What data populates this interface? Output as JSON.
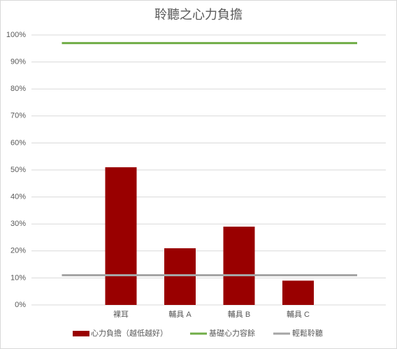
{
  "chart_data": {
    "type": "bar",
    "title": "聆聽之心力負擔",
    "categories": [
      "裸耳",
      "輔具 A",
      "輔具 B",
      "輔具 C"
    ],
    "series": [
      {
        "name": "心力負擔（越低越好）",
        "color": "#990000",
        "values": [
          51,
          21,
          29,
          9
        ]
      }
    ],
    "reference_lines": [
      {
        "name": "基礎心力容餘",
        "color": "#70ad47",
        "value": 97
      },
      {
        "name": "輕鬆聆聽",
        "color": "#a5a5a5",
        "value": 11
      }
    ],
    "ylim": [
      0,
      100
    ],
    "yticks": [
      {
        "value": 0,
        "label": "0%"
      },
      {
        "value": 10,
        "label": "10%"
      },
      {
        "value": 20,
        "label": "20%"
      },
      {
        "value": 30,
        "label": "30%"
      },
      {
        "value": 40,
        "label": "40%"
      },
      {
        "value": 50,
        "label": "50%"
      },
      {
        "value": 60,
        "label": "60%"
      },
      {
        "value": 70,
        "label": "70%"
      },
      {
        "value": 80,
        "label": "80%"
      },
      {
        "value": 90,
        "label": "90%"
      },
      {
        "value": 100,
        "label": "100%"
      }
    ],
    "grid": true,
    "legend": "bottom"
  }
}
